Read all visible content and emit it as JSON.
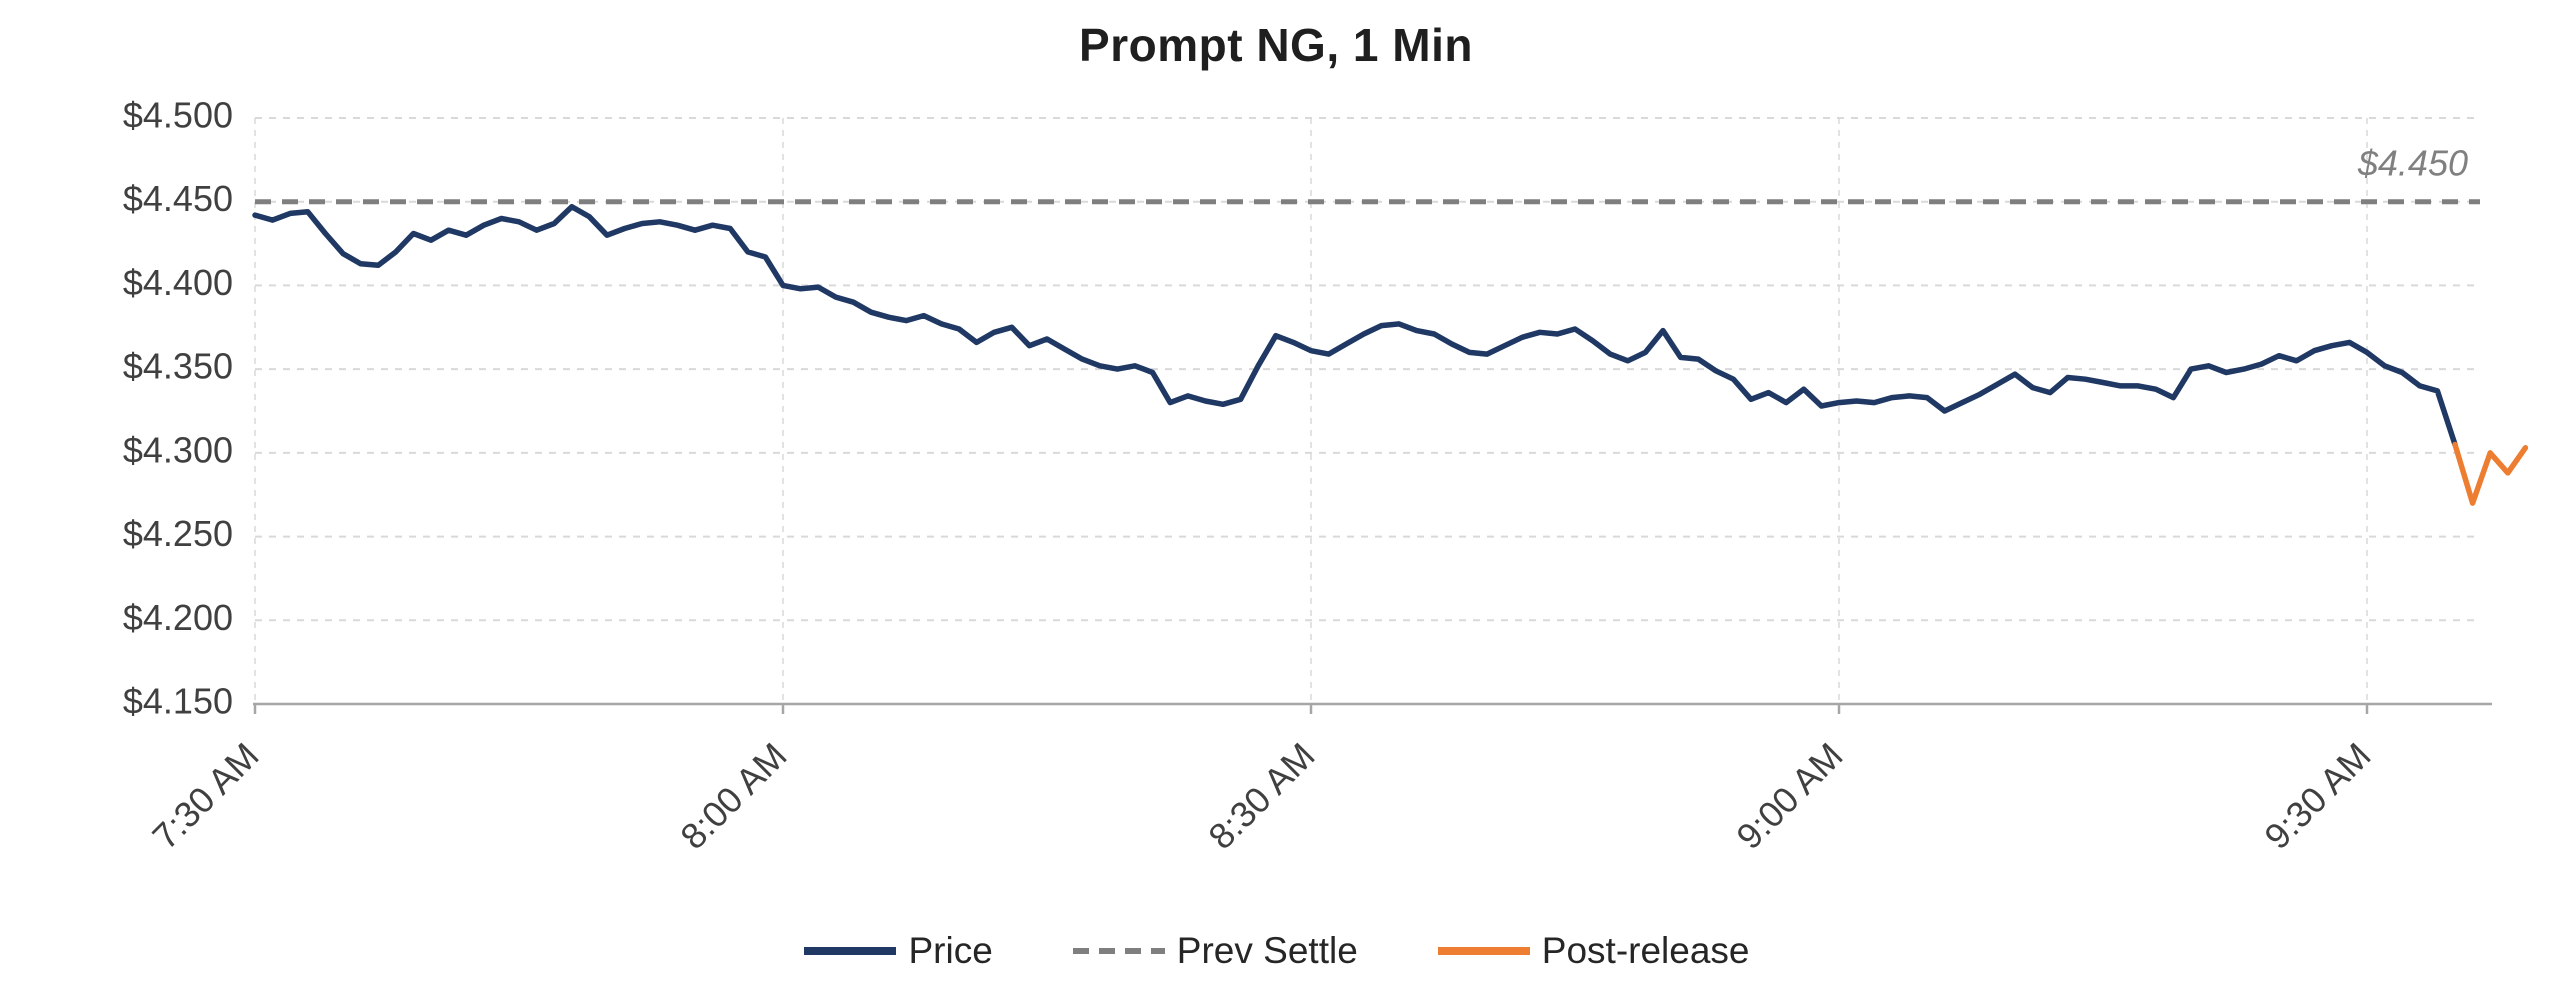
{
  "title": "Prompt NG, 1 Min",
  "annotations": {
    "prev_settle_value_label": "$4.450"
  },
  "legend": [
    {
      "label": "Price",
      "color": "#1F3864",
      "style": "solid"
    },
    {
      "label": "Prev Settle",
      "color": "#7F7F7F",
      "style": "dashed"
    },
    {
      "label": "Post-release",
      "color": "#ED7D31",
      "style": "solid"
    }
  ],
  "colors": {
    "price": "#1F3864",
    "prev_settle": "#7F7F7F",
    "post_release": "#ED7D31",
    "grid": "#D9D9D9",
    "vgrid": "#E2E2E2",
    "axis": "#A6A6A6",
    "tick_text": "#404040",
    "annotation_text": "#808080",
    "title_text": "#1F1F1F"
  },
  "chart_data": {
    "type": "line",
    "title": "Prompt NG, 1 Min",
    "xlabel": "",
    "ylabel": "",
    "x_unit": "minutes since 7:30 AM",
    "xlim": [
      0,
      130
    ],
    "ylim": [
      4.15,
      4.5
    ],
    "grid": true,
    "legend_position": "bottom",
    "x_ticks": [
      {
        "minute": 0,
        "label": "7:30 AM"
      },
      {
        "minute": 30,
        "label": "8:00 AM"
      },
      {
        "minute": 60,
        "label": "8:30 AM"
      },
      {
        "minute": 90,
        "label": "9:00 AM"
      },
      {
        "minute": 120,
        "label": "9:30 AM"
      }
    ],
    "y_ticks": [
      {
        "value": 4.5,
        "label": "$4.500"
      },
      {
        "value": 4.45,
        "label": "$4.450"
      },
      {
        "value": 4.4,
        "label": "$4.400"
      },
      {
        "value": 4.35,
        "label": "$4.350"
      },
      {
        "value": 4.3,
        "label": "$4.300"
      },
      {
        "value": 4.25,
        "label": "$4.250"
      },
      {
        "value": 4.2,
        "label": "$4.200"
      },
      {
        "value": 4.15,
        "label": "$4.150"
      }
    ],
    "prev_settle": {
      "name": "Prev Settle",
      "value": 4.45,
      "color": "#7F7F7F",
      "style": "dashed",
      "annotation": "$4.450"
    },
    "series": [
      {
        "name": "Price",
        "color": "#1F3864",
        "style": "solid",
        "points": [
          [
            0,
            4.442
          ],
          [
            1,
            4.439
          ],
          [
            2,
            4.443
          ],
          [
            3,
            4.444
          ],
          [
            4,
            4.431
          ],
          [
            5,
            4.419
          ],
          [
            6,
            4.413
          ],
          [
            7,
            4.412
          ],
          [
            8,
            4.42
          ],
          [
            9,
            4.431
          ],
          [
            10,
            4.427
          ],
          [
            11,
            4.433
          ],
          [
            12,
            4.43
          ],
          [
            13,
            4.436
          ],
          [
            14,
            4.44
          ],
          [
            15,
            4.438
          ],
          [
            16,
            4.433
          ],
          [
            17,
            4.437
          ],
          [
            18,
            4.447
          ],
          [
            19,
            4.441
          ],
          [
            20,
            4.43
          ],
          [
            21,
            4.434
          ],
          [
            22,
            4.437
          ],
          [
            23,
            4.438
          ],
          [
            24,
            4.436
          ],
          [
            25,
            4.433
          ],
          [
            26,
            4.436
          ],
          [
            27,
            4.434
          ],
          [
            28,
            4.42
          ],
          [
            29,
            4.417
          ],
          [
            30,
            4.4
          ],
          [
            31,
            4.398
          ],
          [
            32,
            4.399
          ],
          [
            33,
            4.393
          ],
          [
            34,
            4.39
          ],
          [
            35,
            4.384
          ],
          [
            36,
            4.381
          ],
          [
            37,
            4.379
          ],
          [
            38,
            4.382
          ],
          [
            39,
            4.377
          ],
          [
            40,
            4.374
          ],
          [
            41,
            4.366
          ],
          [
            42,
            4.372
          ],
          [
            43,
            4.375
          ],
          [
            44,
            4.364
          ],
          [
            45,
            4.368
          ],
          [
            46,
            4.362
          ],
          [
            47,
            4.356
          ],
          [
            48,
            4.352
          ],
          [
            49,
            4.35
          ],
          [
            50,
            4.352
          ],
          [
            51,
            4.348
          ],
          [
            52,
            4.33
          ],
          [
            53,
            4.334
          ],
          [
            54,
            4.331
          ],
          [
            55,
            4.329
          ],
          [
            56,
            4.332
          ],
          [
            57,
            4.352
          ],
          [
            58,
            4.37
          ],
          [
            59,
            4.366
          ],
          [
            60,
            4.361
          ],
          [
            61,
            4.359
          ],
          [
            62,
            4.365
          ],
          [
            63,
            4.371
          ],
          [
            64,
            4.376
          ],
          [
            65,
            4.377
          ],
          [
            66,
            4.373
          ],
          [
            67,
            4.371
          ],
          [
            68,
            4.365
          ],
          [
            69,
            4.36
          ],
          [
            70,
            4.359
          ],
          [
            71,
            4.364
          ],
          [
            72,
            4.369
          ],
          [
            73,
            4.372
          ],
          [
            74,
            4.371
          ],
          [
            75,
            4.374
          ],
          [
            76,
            4.367
          ],
          [
            77,
            4.359
          ],
          [
            78,
            4.355
          ],
          [
            79,
            4.36
          ],
          [
            80,
            4.373
          ],
          [
            81,
            4.357
          ],
          [
            82,
            4.356
          ],
          [
            83,
            4.349
          ],
          [
            84,
            4.344
          ],
          [
            85,
            4.332
          ],
          [
            86,
            4.336
          ],
          [
            87,
            4.33
          ],
          [
            88,
            4.338
          ],
          [
            89,
            4.328
          ],
          [
            90,
            4.33
          ],
          [
            91,
            4.331
          ],
          [
            92,
            4.33
          ],
          [
            93,
            4.333
          ],
          [
            94,
            4.334
          ],
          [
            95,
            4.333
          ],
          [
            96,
            4.325
          ],
          [
            97,
            4.33
          ],
          [
            98,
            4.335
          ],
          [
            99,
            4.341
          ],
          [
            100,
            4.347
          ],
          [
            101,
            4.339
          ],
          [
            102,
            4.336
          ],
          [
            103,
            4.345
          ],
          [
            104,
            4.344
          ],
          [
            105,
            4.342
          ],
          [
            106,
            4.34
          ],
          [
            107,
            4.34
          ],
          [
            108,
            4.338
          ],
          [
            109,
            4.333
          ],
          [
            110,
            4.35
          ],
          [
            111,
            4.352
          ],
          [
            112,
            4.348
          ],
          [
            113,
            4.35
          ],
          [
            114,
            4.353
          ],
          [
            115,
            4.358
          ],
          [
            116,
            4.355
          ],
          [
            117,
            4.361
          ],
          [
            118,
            4.364
          ],
          [
            119,
            4.366
          ],
          [
            120,
            4.36
          ],
          [
            121,
            4.352
          ],
          [
            122,
            4.348
          ],
          [
            123,
            4.34
          ],
          [
            124,
            4.337
          ],
          [
            125,
            4.305
          ]
        ]
      },
      {
        "name": "Post-release",
        "color": "#ED7D31",
        "style": "solid",
        "points": [
          [
            125,
            4.305
          ],
          [
            126,
            4.27
          ],
          [
            127,
            4.3
          ],
          [
            128,
            4.288
          ],
          [
            129,
            4.303
          ]
        ]
      }
    ]
  }
}
